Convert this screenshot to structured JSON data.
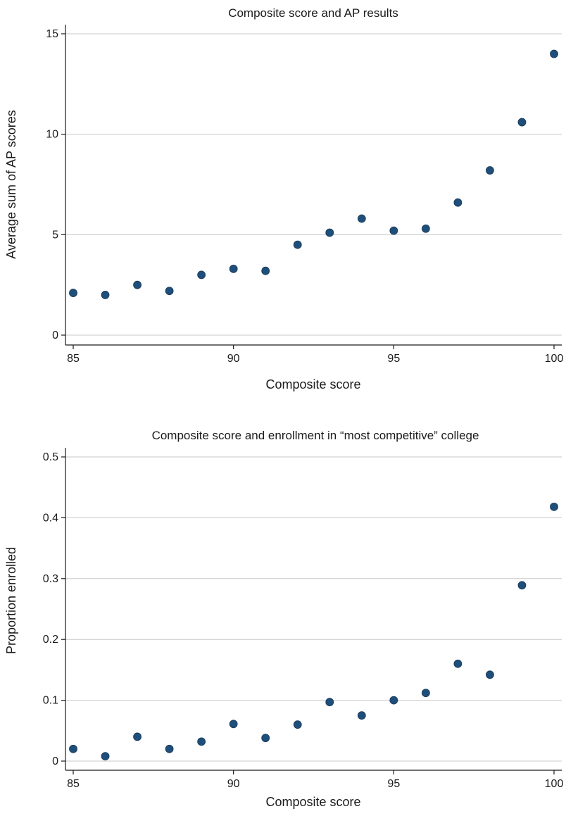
{
  "chart_data": [
    {
      "type": "scatter",
      "title": "Composite score and AP results",
      "xlabel": "Composite score",
      "ylabel": "Average sum of AP scores",
      "xlim": [
        85,
        100
      ],
      "ylim": [
        0,
        15
      ],
      "xticks": [
        85,
        90,
        95,
        100
      ],
      "yticks": [
        0,
        5,
        10,
        15
      ],
      "grid": true,
      "marker_color": "#1f4e79",
      "series": [
        {
          "x": [
            85,
            86,
            87,
            88,
            89,
            90,
            91,
            92,
            93,
            94,
            95,
            96,
            97,
            98,
            99,
            100
          ],
          "y": [
            2.1,
            2.0,
            2.5,
            2.2,
            3.0,
            3.3,
            3.2,
            4.5,
            5.1,
            5.8,
            5.2,
            5.3,
            6.6,
            8.2,
            10.6,
            14.0
          ]
        }
      ]
    },
    {
      "type": "scatter",
      "title": "Composite score and enrollment in “most competitive” college",
      "xlabel": "Composite score",
      "ylabel": "Proportion enrolled",
      "xlim": [
        85,
        100
      ],
      "ylim": [
        0,
        0.5
      ],
      "xticks": [
        85,
        90,
        95,
        100
      ],
      "yticks": [
        0,
        0.1,
        0.2,
        0.3,
        0.4,
        0.5
      ],
      "grid": true,
      "marker_color": "#1f4e79",
      "series": [
        {
          "x": [
            85,
            86,
            87,
            88,
            89,
            90,
            91,
            92,
            93,
            94,
            95,
            96,
            97,
            98,
            99,
            100
          ],
          "y": [
            0.02,
            0.008,
            0.04,
            0.02,
            0.032,
            0.061,
            0.038,
            0.06,
            0.097,
            0.075,
            0.1,
            0.112,
            0.16,
            0.142,
            0.289,
            0.418
          ]
        }
      ]
    }
  ]
}
